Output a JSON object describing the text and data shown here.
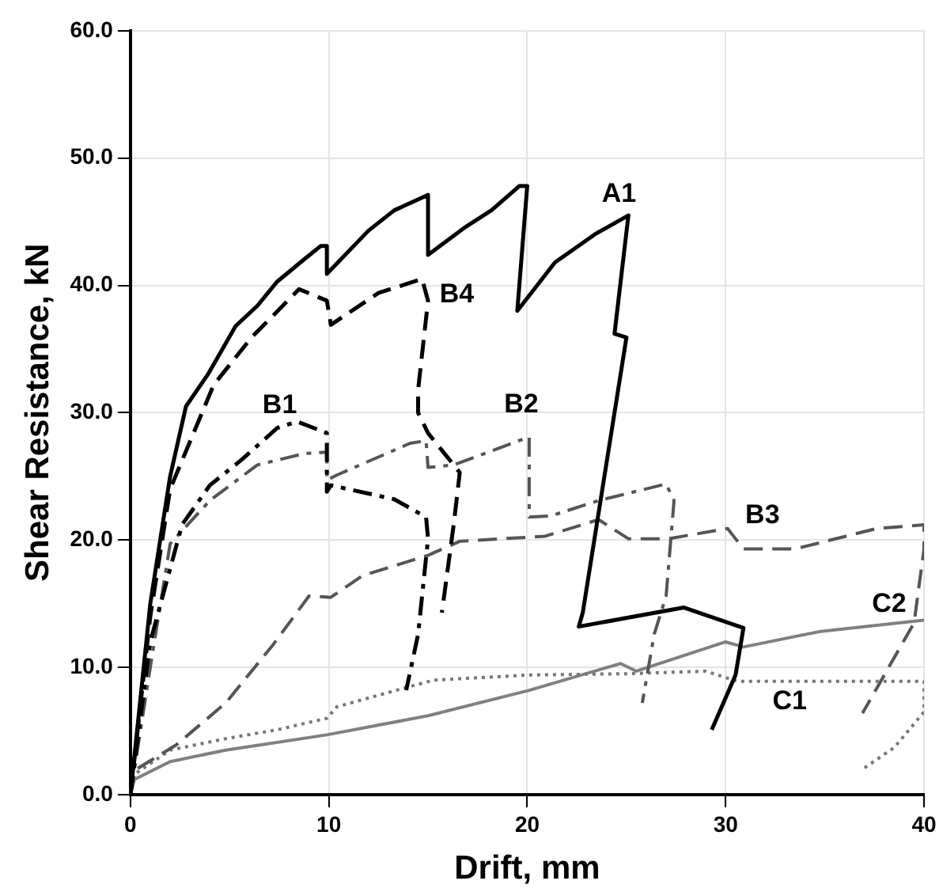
{
  "chart_data": {
    "type": "line",
    "xlabel": "Drift, mm",
    "ylabel": "Shear Resistance, kN",
    "xlim": [
      0,
      40
    ],
    "ylim": [
      0,
      60
    ],
    "xticks": [
      0,
      10,
      20,
      30,
      40
    ],
    "yticks": [
      {
        "value": 0,
        "label": "0.0"
      },
      {
        "value": 10,
        "label": "10.0"
      },
      {
        "value": 20,
        "label": "20.0"
      },
      {
        "value": 30,
        "label": "30.0"
      },
      {
        "value": 40,
        "label": "40.0"
      },
      {
        "value": 50,
        "label": "50.0"
      },
      {
        "value": 60,
        "label": "60.0"
      }
    ],
    "grid": true,
    "legend": false,
    "marker": "none",
    "series": [
      {
        "name": "A1",
        "color": "#000000",
        "line_style": "solid",
        "x": [
          0,
          1,
          2,
          2.8,
          3.9,
          5.3,
          6.4,
          7.4,
          8.8,
          9.6,
          9.9,
          9.9,
          12,
          13.3,
          15,
          15,
          16.9,
          18.2,
          19.6,
          20,
          19.5,
          21.4,
          23.4,
          25.1,
          24.4,
          25,
          22.8,
          22.6,
          27.9,
          30.9,
          30.5,
          29.3
        ],
        "values": [
          0,
          15,
          25,
          30.5,
          33,
          36.8,
          38.4,
          40.3,
          42.1,
          43.1,
          43.1,
          40.9,
          44.3,
          45.9,
          47.1,
          42.4,
          44.6,
          45.9,
          47.8,
          47.8,
          38,
          41.8,
          44,
          45.5,
          36.2,
          35.9,
          14.3,
          13.2,
          14.7,
          13.1,
          9.4,
          5.1
        ]
      },
      {
        "name": "B4",
        "color": "#000000",
        "line_style": "dashed",
        "x": [
          0,
          1,
          2,
          4.2,
          6.1,
          8.5,
          9.9,
          10.1,
          12.5,
          14.7,
          15,
          14.5,
          14.5,
          15,
          16.6,
          16.3,
          15.7
        ],
        "values": [
          0,
          14,
          24,
          32.2,
          35.9,
          39.7,
          38.8,
          36.9,
          39.4,
          40.5,
          38.8,
          31.8,
          30,
          28.4,
          25.3,
          21.3,
          14.3
        ]
      },
      {
        "name": "B1",
        "color": "#000000",
        "line_style": "dashdot",
        "x": [
          0,
          1,
          2.6,
          4,
          5.6,
          7.4,
          8.4,
          9.9,
          9.9,
          10.1,
          13.3,
          14.9,
          15,
          14.5,
          13.9
        ],
        "values": [
          0,
          12,
          21.2,
          24.3,
          26.3,
          28.8,
          29.3,
          28.4,
          23.8,
          24.3,
          23.2,
          21.8,
          20.1,
          12.6,
          8.2
        ]
      },
      {
        "name": "B2",
        "color": "#555555",
        "line_style": "dashdot",
        "x": [
          0,
          1,
          2,
          4,
          6.4,
          8.8,
          9.9,
          9.9,
          10.4,
          14.1,
          14.9,
          15,
          16.3,
          20.1,
          20.1,
          21.2,
          23.6,
          27,
          27.4,
          27,
          26.4,
          25.8
        ],
        "values": [
          0,
          10,
          19.7,
          23.1,
          25.9,
          26.8,
          26.9,
          24.7,
          25.1,
          27.6,
          27.8,
          25.7,
          25.9,
          28.1,
          21.8,
          21.9,
          23.1,
          24.4,
          23.1,
          15.6,
          12.6,
          7.2
        ]
      },
      {
        "name": "B3",
        "color": "#555555",
        "line_style": "dashed",
        "x": [
          0,
          0.2,
          2.3,
          4.8,
          7.2,
          9,
          10.1,
          11.7,
          15,
          16.6,
          20.9,
          23.6,
          25.1,
          27.1,
          30.1,
          30.9,
          33.5,
          37.6,
          40,
          40,
          39.5,
          36.9
        ],
        "values": [
          0,
          1.9,
          3.9,
          7.2,
          11.8,
          15.6,
          15.5,
          17.2,
          18.8,
          19.9,
          20.3,
          21.6,
          20.1,
          20.1,
          20.9,
          19.3,
          19.3,
          20.9,
          21.2,
          19.3,
          13.5,
          6.4
        ]
      },
      {
        "name": "C1",
        "color": "#777777",
        "line_style": "dotted",
        "x": [
          0,
          0.2,
          2,
          4.8,
          7.4,
          9.9,
          10.4,
          14.1,
          15.3,
          20.1,
          25,
          29,
          30.6,
          40,
          40,
          38.5,
          36.9
        ],
        "values": [
          0,
          1.6,
          3.5,
          4.4,
          5.1,
          6,
          6.9,
          8.5,
          9,
          9.4,
          9.5,
          9.7,
          8.9,
          8.9,
          6.5,
          3.7,
          2
        ]
      },
      {
        "name": "C2",
        "color": "#808080",
        "line_style": "solid",
        "x": [
          0,
          0.2,
          2,
          4.8,
          9.9,
          15,
          20.1,
          24.7,
          25.5,
          30,
          30.9,
          34.7,
          40
        ],
        "values": [
          0,
          1.2,
          2.6,
          3.5,
          4.7,
          6.2,
          8.2,
          10.3,
          9.7,
          12,
          11.6,
          12.8,
          13.7
        ]
      }
    ]
  }
}
